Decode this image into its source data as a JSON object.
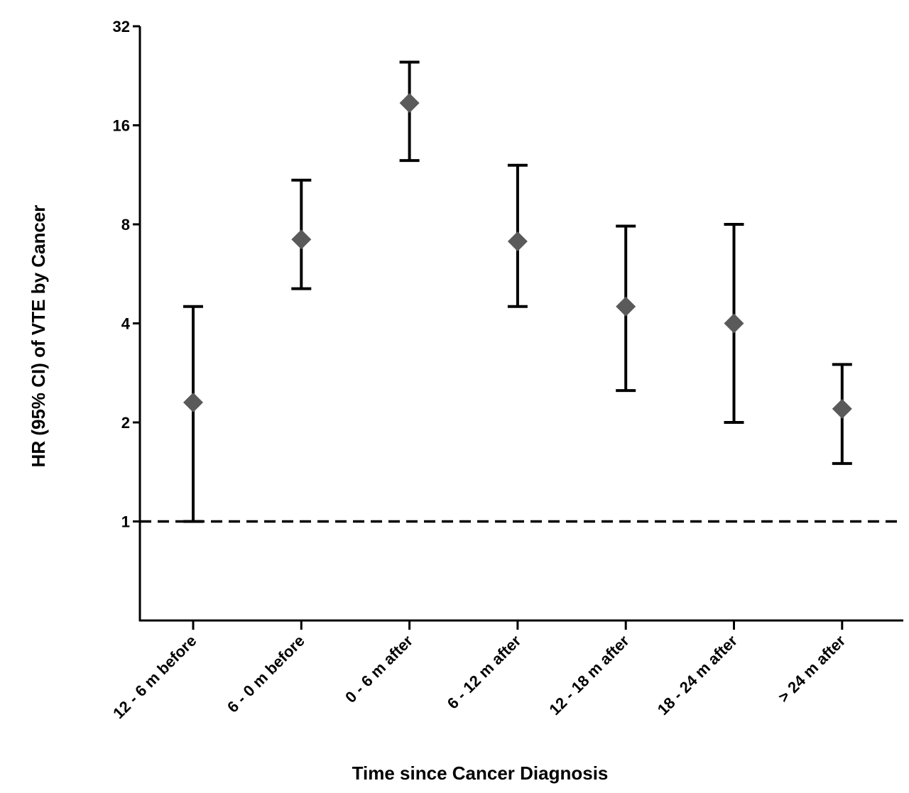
{
  "chart_data": {
    "type": "scatter",
    "variant": "point-estimate-with-error-bars",
    "y_scale": "log2",
    "xlabel": "Time since Cancer Diagnosis",
    "ylabel": "HR (95% CI) of VTE by Cancer",
    "ylim": [
      0.5,
      32
    ],
    "yticks": [
      {
        "value": 1,
        "label": "1"
      },
      {
        "value": 2,
        "label": "2"
      },
      {
        "value": 4,
        "label": "4"
      },
      {
        "value": 8,
        "label": "8"
      },
      {
        "value": 16,
        "label": "16"
      },
      {
        "value": 32,
        "label": "32"
      }
    ],
    "reference_line": {
      "value": 1,
      "style": "dashed"
    },
    "categories": [
      "12  - 6 m before",
      "6 - 0 m before",
      "0 - 6 m after",
      "6 - 12 m after",
      "12 - 18 m after",
      "18 - 24 m after",
      "> 24 m after"
    ],
    "series": [
      {
        "name": "HR",
        "values": [
          2.3,
          7.2,
          18.7,
          7.1,
          4.5,
          4.0,
          2.2
        ],
        "ci_lower": [
          1.0,
          5.1,
          12.5,
          4.5,
          2.5,
          2.0,
          1.5
        ],
        "ci_upper": [
          4.5,
          10.9,
          24.9,
          12.1,
          7.9,
          8.0,
          3.0
        ],
        "color": "#5a5a5a"
      }
    ],
    "colors": {
      "axis": "#000000",
      "marker": "#5a5a5a",
      "errorbar": "#000000"
    }
  }
}
